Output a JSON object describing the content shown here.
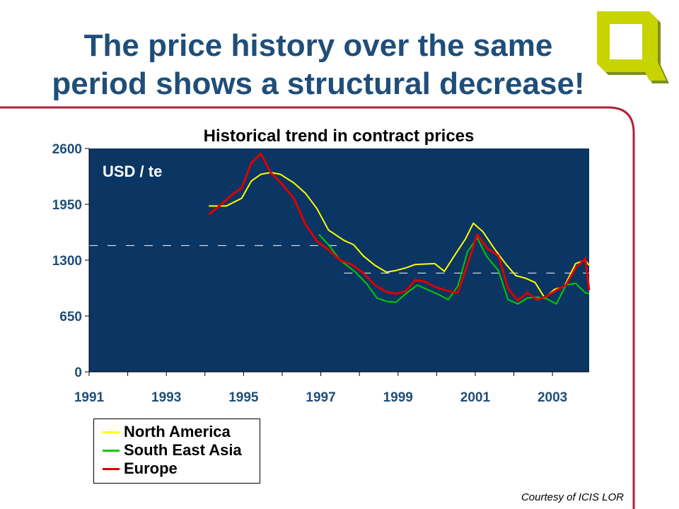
{
  "slide": {
    "title_line1": "The price history over the same",
    "title_line2": "period shows a structural decrease!",
    "credit": "Courtesy of ICIS LOR",
    "logo_icon": "q-logo-icon"
  },
  "colors": {
    "title": "#1f4e79",
    "plot_background": "#0b3563",
    "frame": "#b22234",
    "north_america": "#ffff00",
    "south_east_asia": "#00cc00",
    "europe": "#dd0000"
  },
  "chart_data": {
    "type": "line",
    "title": "Historical trend in contract prices",
    "annotation": "USD / te",
    "xlim": [
      1991,
      2003.95
    ],
    "ylim": [
      0,
      2600
    ],
    "x_ticks": [
      "1991",
      "1993",
      "1995",
      "1997",
      "1999",
      "2001",
      "2003"
    ],
    "y_ticks": [
      "0",
      "650",
      "1300",
      "1950",
      "2600"
    ],
    "grid": false,
    "legend_position": "bottom-left, below chart",
    "series": [
      {
        "name": "North America",
        "color": "#ffff00",
        "points": [
          [
            1994.1,
            1930
          ],
          [
            1994.55,
            1930
          ],
          [
            1994.95,
            2020
          ],
          [
            1995.2,
            2220
          ],
          [
            1995.45,
            2300
          ],
          [
            1995.7,
            2320
          ],
          [
            1995.95,
            2300
          ],
          [
            1996.3,
            2200
          ],
          [
            1996.6,
            2080
          ],
          [
            1996.9,
            1900
          ],
          [
            1997.2,
            1650
          ],
          [
            1997.6,
            1530
          ],
          [
            1997.85,
            1480
          ],
          [
            1998.1,
            1350
          ],
          [
            1998.4,
            1240
          ],
          [
            1998.7,
            1160
          ],
          [
            1998.95,
            1180
          ],
          [
            1999.2,
            1210
          ],
          [
            1999.45,
            1250
          ],
          [
            1999.95,
            1260
          ],
          [
            2000.2,
            1170
          ],
          [
            2000.5,
            1380
          ],
          [
            2000.75,
            1550
          ],
          [
            2000.95,
            1730
          ],
          [
            2001.2,
            1630
          ],
          [
            2001.5,
            1430
          ],
          [
            2001.8,
            1250
          ],
          [
            2002.05,
            1120
          ],
          [
            2002.3,
            1090
          ],
          [
            2002.55,
            1040
          ],
          [
            2002.8,
            860
          ],
          [
            2003.05,
            960
          ],
          [
            2003.3,
            990
          ],
          [
            2003.6,
            1260
          ],
          [
            2003.85,
            1300
          ],
          [
            2003.95,
            1240
          ]
        ]
      },
      {
        "name": "South East Asia",
        "color": "#00cc00",
        "points": [
          [
            1996.95,
            1600
          ],
          [
            1997.2,
            1480
          ],
          [
            1997.5,
            1300
          ],
          [
            1997.9,
            1160
          ],
          [
            1998.2,
            1020
          ],
          [
            1998.45,
            860
          ],
          [
            1998.7,
            820
          ],
          [
            1998.95,
            810
          ],
          [
            1999.2,
            910
          ],
          [
            1999.5,
            1010
          ],
          [
            1999.8,
            950
          ],
          [
            2000.05,
            900
          ],
          [
            2000.3,
            840
          ],
          [
            2000.55,
            1000
          ],
          [
            2000.8,
            1400
          ],
          [
            2001.05,
            1560
          ],
          [
            2001.3,
            1340
          ],
          [
            2001.6,
            1180
          ],
          [
            2001.85,
            840
          ],
          [
            2002.1,
            790
          ],
          [
            2002.35,
            860
          ],
          [
            2002.6,
            870
          ],
          [
            2002.85,
            850
          ],
          [
            2003.1,
            790
          ],
          [
            2003.35,
            1010
          ],
          [
            2003.6,
            1030
          ],
          [
            2003.85,
            920
          ],
          [
            2003.95,
            910
          ]
        ]
      },
      {
        "name": "Europe",
        "color": "#dd0000",
        "points": [
          [
            1994.1,
            1830
          ],
          [
            1994.45,
            1960
          ],
          [
            1994.7,
            2060
          ],
          [
            1994.95,
            2140
          ],
          [
            1995.2,
            2430
          ],
          [
            1995.45,
            2540
          ],
          [
            1995.7,
            2320
          ],
          [
            1995.95,
            2210
          ],
          [
            1996.3,
            2020
          ],
          [
            1996.6,
            1720
          ],
          [
            1996.9,
            1520
          ],
          [
            1997.2,
            1420
          ],
          [
            1997.5,
            1300
          ],
          [
            1997.8,
            1250
          ],
          [
            1998.1,
            1150
          ],
          [
            1998.4,
            1010
          ],
          [
            1998.7,
            930
          ],
          [
            1998.95,
            910
          ],
          [
            1999.2,
            940
          ],
          [
            1999.45,
            1070
          ],
          [
            1999.7,
            1050
          ],
          [
            1999.95,
            990
          ],
          [
            2000.3,
            940
          ],
          [
            2000.55,
            920
          ],
          [
            2000.8,
            1250
          ],
          [
            2001.05,
            1600
          ],
          [
            2001.3,
            1440
          ],
          [
            2001.6,
            1350
          ],
          [
            2001.85,
            970
          ],
          [
            2002.1,
            830
          ],
          [
            2002.35,
            920
          ],
          [
            2002.6,
            840
          ],
          [
            2002.85,
            880
          ],
          [
            2003.1,
            950
          ],
          [
            2003.35,
            1010
          ],
          [
            2003.6,
            1210
          ],
          [
            2003.85,
            1320
          ],
          [
            2003.95,
            950
          ]
        ]
      }
    ],
    "reference_lines": [
      {
        "y": 1470,
        "x_range": [
          1991,
          1997.6
        ]
      },
      {
        "y": 1150,
        "x_range": [
          1997.6,
          2003.95
        ]
      }
    ]
  }
}
